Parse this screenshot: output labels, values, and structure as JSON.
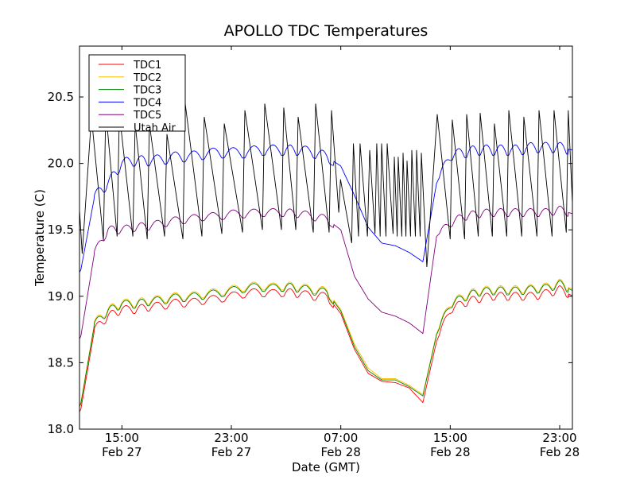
{
  "chart_data": {
    "type": "line",
    "title": "APOLLO TDC Temperatures",
    "xlabel": "Date (GMT)",
    "ylabel": "Temperature (C)",
    "x_units": "hours since Feb 27 00:00 GMT",
    "xlim": [
      11.9,
      47.93
    ],
    "ylim": [
      18.0,
      20.883
    ],
    "grid": false,
    "legend_position": "top-left",
    "x_ticks": [
      {
        "value": 15,
        "time": "15:00",
        "date": "Feb 27"
      },
      {
        "value": 23,
        "time": "23:00",
        "date": "Feb 27"
      },
      {
        "value": 31,
        "time": "07:00",
        "date": "Feb 28"
      },
      {
        "value": 39,
        "time": "15:00",
        "date": "Feb 28"
      },
      {
        "value": 47,
        "time": "23:00",
        "date": "Feb 28"
      }
    ],
    "y_ticks": [
      {
        "value": 18.0,
        "label": "18.0"
      },
      {
        "value": 18.5,
        "label": "18.5"
      },
      {
        "value": 19.0,
        "label": "19.0"
      },
      {
        "value": 19.5,
        "label": "19.5"
      },
      {
        "value": 20.0,
        "label": "20.0"
      },
      {
        "value": 20.5,
        "label": "20.5"
      }
    ],
    "hours": [
      12,
      13,
      14,
      15,
      16,
      17,
      18,
      19,
      20,
      21,
      22,
      23,
      24,
      25,
      26,
      27,
      28,
      29,
      30,
      31,
      32,
      33,
      34,
      35,
      36,
      37,
      38,
      39,
      40,
      41,
      42,
      43,
      44,
      45,
      46,
      47,
      48
    ],
    "ripple_amplitude": 0.06,
    "series": [
      {
        "name": "TDC1",
        "color": "#ff0000",
        "values": [
          18.15,
          18.75,
          18.85,
          18.9,
          18.9,
          18.92,
          18.93,
          18.95,
          18.95,
          18.97,
          18.98,
          19.0,
          19.02,
          19.03,
          19.02,
          19.03,
          19.02,
          19.0,
          19.0,
          18.87,
          18.6,
          18.42,
          18.36,
          18.35,
          18.31,
          18.2,
          18.66,
          18.9,
          18.95,
          18.98,
          19.0,
          19.0,
          19.0,
          19.0,
          19.02,
          19.05,
          19.0
        ]
      },
      {
        "name": "TDC2",
        "color": "#ffbf00",
        "values": [
          18.2,
          18.8,
          18.9,
          18.95,
          18.95,
          18.97,
          18.98,
          19.0,
          19.0,
          19.02,
          19.03,
          19.05,
          19.07,
          19.08,
          19.07,
          19.08,
          19.07,
          19.05,
          19.04,
          18.9,
          18.64,
          18.46,
          18.38,
          18.38,
          18.33,
          18.26,
          18.72,
          18.95,
          19.0,
          19.04,
          19.05,
          19.05,
          19.05,
          19.06,
          19.07,
          19.1,
          19.05
        ]
      },
      {
        "name": "TDC3",
        "color": "#008000",
        "values": [
          18.19,
          18.79,
          18.89,
          18.94,
          18.94,
          18.96,
          18.97,
          18.99,
          18.99,
          19.01,
          19.02,
          19.04,
          19.06,
          19.07,
          19.06,
          19.07,
          19.06,
          19.04,
          19.03,
          18.89,
          18.62,
          18.44,
          18.37,
          18.37,
          18.32,
          18.25,
          18.71,
          18.94,
          18.99,
          19.03,
          19.04,
          19.04,
          19.04,
          19.05,
          19.06,
          19.09,
          19.04
        ]
      },
      {
        "name": "TDC4",
        "color": "#0000ff",
        "values": [
          19.2,
          19.75,
          19.85,
          20.0,
          20.02,
          20.02,
          20.03,
          20.05,
          20.05,
          20.07,
          20.08,
          20.08,
          20.08,
          20.1,
          20.1,
          20.1,
          20.1,
          20.08,
          20.05,
          19.98,
          19.76,
          19.52,
          19.4,
          19.38,
          19.33,
          19.26,
          19.85,
          20.06,
          20.08,
          20.1,
          20.1,
          20.1,
          20.1,
          20.12,
          20.12,
          20.12,
          20.1
        ]
      },
      {
        "name": "TDC5",
        "color": "#800080",
        "values": [
          18.7,
          19.33,
          19.5,
          19.5,
          19.52,
          19.53,
          19.55,
          19.57,
          19.58,
          19.6,
          19.6,
          19.62,
          19.62,
          19.63,
          19.63,
          19.63,
          19.62,
          19.6,
          19.58,
          19.5,
          19.15,
          18.98,
          18.88,
          18.85,
          18.8,
          18.72,
          19.45,
          19.55,
          19.6,
          19.62,
          19.63,
          19.63,
          19.63,
          19.63,
          19.63,
          19.65,
          19.62
        ]
      },
      {
        "name": "Utah Air",
        "color": "#000000",
        "points": [
          [
            11.9,
            19.65
          ],
          [
            12.1,
            19.32
          ],
          [
            12.77,
            20.35
          ],
          [
            13.65,
            19.42
          ],
          [
            13.82,
            20.4
          ],
          [
            14.65,
            19.45
          ],
          [
            14.81,
            20.38
          ],
          [
            15.8,
            19.45
          ],
          [
            15.97,
            20.3
          ],
          [
            16.85,
            19.43
          ],
          [
            17.01,
            20.3
          ],
          [
            18.12,
            19.45
          ],
          [
            18.29,
            20.22
          ],
          [
            19.46,
            19.43
          ],
          [
            19.63,
            20.45
          ],
          [
            20.85,
            19.45
          ],
          [
            21.02,
            20.35
          ],
          [
            22.31,
            19.47
          ],
          [
            22.48,
            20.3
          ],
          [
            23.82,
            19.48
          ],
          [
            23.99,
            20.4
          ],
          [
            25.27,
            19.5
          ],
          [
            25.44,
            20.45
          ],
          [
            26.66,
            19.5
          ],
          [
            26.83,
            20.42
          ],
          [
            27.71,
            19.5
          ],
          [
            27.88,
            20.35
          ],
          [
            28.99,
            19.48
          ],
          [
            29.16,
            20.45
          ],
          [
            30.15,
            19.48
          ],
          [
            30.32,
            20.4
          ],
          [
            30.85,
            19.63
          ],
          [
            30.98,
            19.88
          ],
          [
            31.8,
            19.4
          ],
          [
            31.92,
            20.15
          ],
          [
            32.3,
            19.45
          ],
          [
            32.41,
            20.15
          ],
          [
            32.95,
            19.45
          ],
          [
            33.11,
            20.1
          ],
          [
            33.5,
            19.47
          ],
          [
            33.63,
            20.15
          ],
          [
            33.88,
            19.45
          ],
          [
            33.98,
            20.15
          ],
          [
            34.3,
            19.45
          ],
          [
            34.39,
            20.15
          ],
          [
            34.82,
            19.47
          ],
          [
            34.91,
            20.05
          ],
          [
            35.12,
            19.45
          ],
          [
            35.2,
            20.05
          ],
          [
            35.46,
            19.45
          ],
          [
            35.55,
            20.08
          ],
          [
            35.76,
            19.45
          ],
          [
            35.84,
            20.02
          ],
          [
            36.1,
            19.45
          ],
          [
            36.19,
            20.1
          ],
          [
            36.45,
            19.45
          ],
          [
            36.54,
            20.1
          ],
          [
            36.8,
            19.45
          ],
          [
            36.89,
            20.08
          ],
          [
            37.29,
            19.22
          ],
          [
            38.05,
            20.37
          ],
          [
            39.0,
            19.43
          ],
          [
            39.15,
            20.33
          ],
          [
            40.05,
            19.43
          ],
          [
            40.2,
            20.37
          ],
          [
            41.05,
            19.45
          ],
          [
            41.19,
            20.38
          ],
          [
            42.08,
            19.45
          ],
          [
            42.23,
            20.3
          ],
          [
            43.13,
            19.45
          ],
          [
            43.28,
            20.4
          ],
          [
            44.23,
            19.45
          ],
          [
            44.38,
            20.35
          ],
          [
            45.34,
            19.45
          ],
          [
            45.49,
            20.4
          ],
          [
            46.44,
            19.45
          ],
          [
            46.59,
            20.4
          ],
          [
            47.48,
            19.48
          ],
          [
            47.63,
            20.4
          ],
          [
            47.93,
            19.7
          ]
        ]
      }
    ]
  }
}
